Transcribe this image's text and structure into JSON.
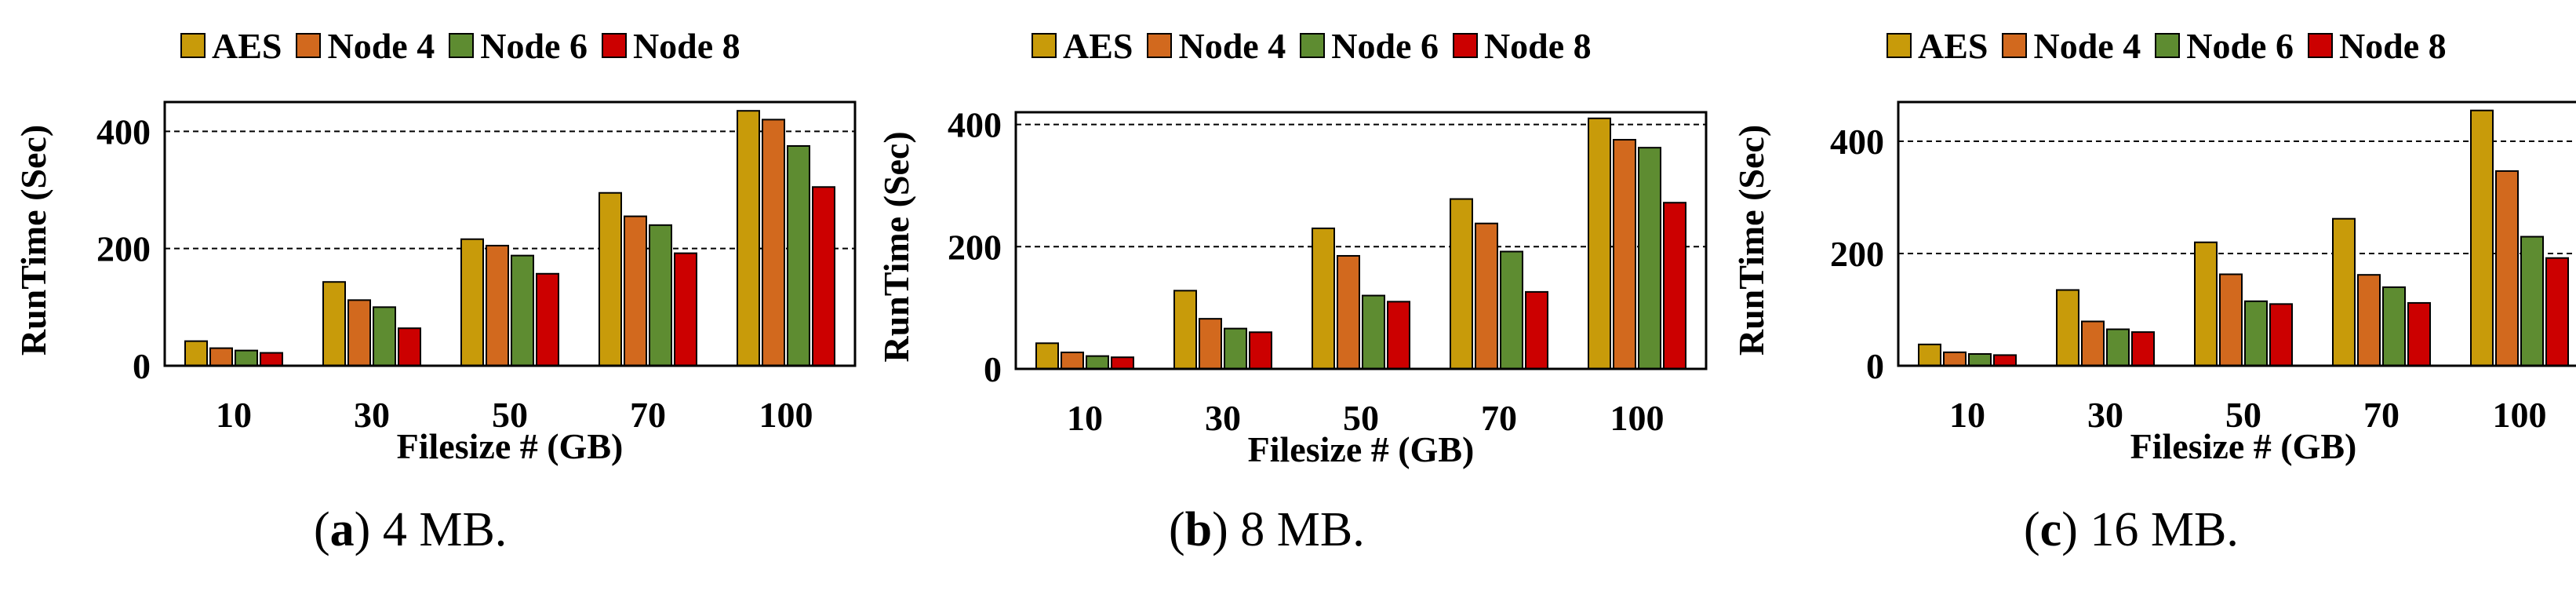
{
  "colors": {
    "AES": "#C89B0A",
    "Node 4": "#D2691E",
    "Node 6": "#5E8C31",
    "Node 8": "#CC0000",
    "grid": "#000000"
  },
  "chart_data": [
    {
      "type": "bar",
      "caption_letter": "(a)",
      "caption_text": " 4 MB.",
      "xlabel": "Filesize # (GB)",
      "ylabel": "RunTime (Sec)",
      "categories": [
        "10",
        "30",
        "50",
        "70",
        "100"
      ],
      "yticks": [
        "0",
        "200",
        "400"
      ],
      "ylim": [
        0,
        450
      ],
      "grid": true,
      "legend_position": "top",
      "series": [
        {
          "name": "AES",
          "values": [
            42,
            143,
            216,
            295,
            435
          ]
        },
        {
          "name": "Node 4",
          "values": [
            30,
            112,
            205,
            255,
            420
          ]
        },
        {
          "name": "Node 6",
          "values": [
            26,
            100,
            188,
            240,
            375
          ]
        },
        {
          "name": "Node 8",
          "values": [
            22,
            64,
            157,
            192,
            305
          ]
        }
      ]
    },
    {
      "type": "bar",
      "caption_letter": "(b)",
      "caption_text": " 8 MB.",
      "xlabel": "Filesize # (GB)",
      "ylabel": "RunTime (Sec)",
      "categories": [
        "10",
        "30",
        "50",
        "70",
        "100"
      ],
      "yticks": [
        "0",
        "200",
        "400"
      ],
      "ylim": [
        0,
        420
      ],
      "grid": true,
      "legend_position": "top",
      "series": [
        {
          "name": "AES",
          "values": [
            42,
            128,
            230,
            278,
            410
          ]
        },
        {
          "name": "Node 4",
          "values": [
            27,
            82,
            185,
            238,
            375
          ]
        },
        {
          "name": "Node 6",
          "values": [
            21,
            66,
            120,
            192,
            362
          ]
        },
        {
          "name": "Node 8",
          "values": [
            19,
            60,
            110,
            126,
            272
          ]
        }
      ]
    },
    {
      "type": "bar",
      "caption_letter": "(c)",
      "caption_text": " 16 MB.",
      "xlabel": "Filesize # (GB)",
      "ylabel": "RunTime (Sec)",
      "categories": [
        "10",
        "30",
        "50",
        "70",
        "100"
      ],
      "yticks": [
        "0",
        "200",
        "400"
      ],
      "ylim": [
        0,
        470
      ],
      "grid": true,
      "legend_position": "top",
      "series": [
        {
          "name": "AES",
          "values": [
            38,
            135,
            220,
            262,
            455
          ]
        },
        {
          "name": "Node 4",
          "values": [
            24,
            79,
            163,
            162,
            347
          ]
        },
        {
          "name": "Node 6",
          "values": [
            21,
            65,
            115,
            140,
            230
          ]
        },
        {
          "name": "Node 8",
          "values": [
            19,
            60,
            110,
            112,
            192
          ]
        }
      ]
    }
  ]
}
